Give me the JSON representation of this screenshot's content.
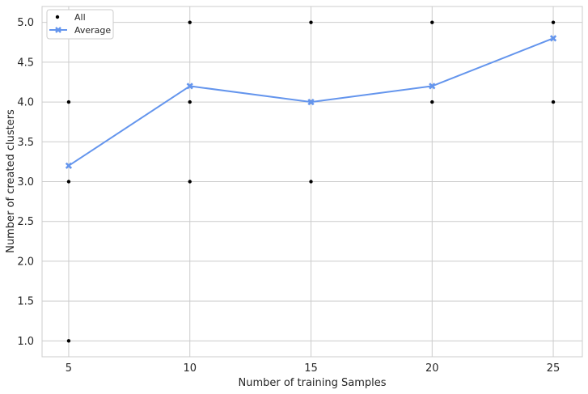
{
  "chart_data": {
    "type": "scatter",
    "title": "",
    "xlabel": "Number of training Samples",
    "ylabel": "Number of created clusters",
    "xlim": [
      3.9,
      26.2
    ],
    "ylim": [
      0.8,
      5.2
    ],
    "xticks": [
      5,
      10,
      15,
      20,
      25
    ],
    "yticks": [
      1.0,
      1.5,
      2.0,
      2.5,
      3.0,
      3.5,
      4.0,
      4.5,
      5.0
    ],
    "xtick_labels": [
      "5",
      "10",
      "15",
      "20",
      "25"
    ],
    "ytick_labels": [
      "1.0",
      "1.5",
      "2.0",
      "2.5",
      "3.0",
      "3.5",
      "4.0",
      "4.5",
      "5.0"
    ],
    "grid": true,
    "legend_position": "top-left",
    "series": [
      {
        "name": "All",
        "kind": "scatter",
        "color": "#000000",
        "points": [
          {
            "x": 5,
            "y": 4
          },
          {
            "x": 5,
            "y": 3
          },
          {
            "x": 5,
            "y": 1
          },
          {
            "x": 10,
            "y": 5
          },
          {
            "x": 10,
            "y": 4
          },
          {
            "x": 10,
            "y": 3
          },
          {
            "x": 15,
            "y": 5
          },
          {
            "x": 15,
            "y": 4
          },
          {
            "x": 15,
            "y": 3
          },
          {
            "x": 20,
            "y": 5
          },
          {
            "x": 20,
            "y": 4
          },
          {
            "x": 25,
            "y": 5
          },
          {
            "x": 25,
            "y": 4
          }
        ]
      },
      {
        "name": "Average",
        "kind": "line",
        "marker": "x",
        "color": "#6495ed",
        "points": [
          {
            "x": 5,
            "y": 3.2
          },
          {
            "x": 10,
            "y": 4.2
          },
          {
            "x": 15,
            "y": 4.0
          },
          {
            "x": 20,
            "y": 4.2
          },
          {
            "x": 25,
            "y": 4.8
          }
        ]
      }
    ],
    "colors": {
      "grid": "#cccccc",
      "frame": "#cccccc",
      "text": "#262626"
    }
  }
}
